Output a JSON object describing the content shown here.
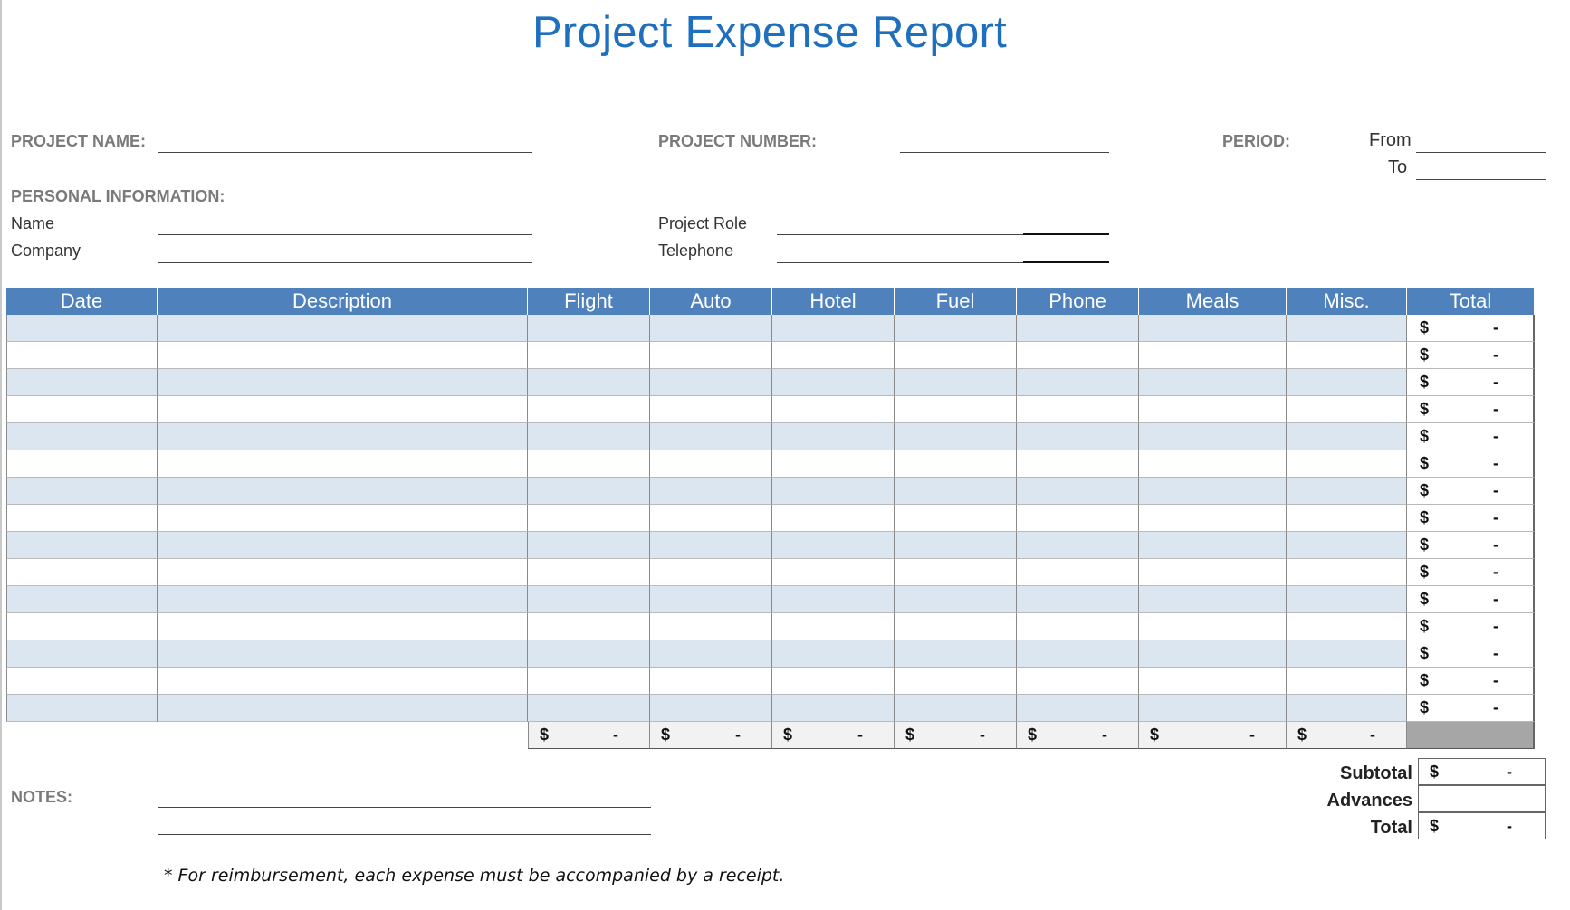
{
  "title": "Project Expense Report",
  "header_fields": {
    "project_name_label": "PROJECT NAME:",
    "project_number_label": "PROJECT NUMBER:",
    "period_label": "PERIOD:",
    "from_label": "From",
    "to_label": "To"
  },
  "personal": {
    "section_label": "PERSONAL INFORMATION:",
    "name_label": "Name",
    "company_label": "Company",
    "role_label": "Project Role",
    "telephone_label": "Telephone"
  },
  "table": {
    "columns": [
      "Date",
      "Description",
      "Flight",
      "Auto",
      "Hotel",
      "Fuel",
      "Phone",
      "Meals",
      "Misc.",
      "Total"
    ],
    "rows": [
      {
        "currency": "$",
        "total": "-"
      },
      {
        "currency": "$",
        "total": "-"
      },
      {
        "currency": "$",
        "total": "-"
      },
      {
        "currency": "$",
        "total": "-"
      },
      {
        "currency": "$",
        "total": "-"
      },
      {
        "currency": "$",
        "total": "-"
      },
      {
        "currency": "$",
        "total": "-"
      },
      {
        "currency": "$",
        "total": "-"
      },
      {
        "currency": "$",
        "total": "-"
      },
      {
        "currency": "$",
        "total": "-"
      },
      {
        "currency": "$",
        "total": "-"
      },
      {
        "currency": "$",
        "total": "-"
      },
      {
        "currency": "$",
        "total": "-"
      },
      {
        "currency": "$",
        "total": "-"
      },
      {
        "currency": "$",
        "total": "-"
      }
    ],
    "column_totals": [
      {
        "currency": "$",
        "value": "-"
      },
      {
        "currency": "$",
        "value": "-"
      },
      {
        "currency": "$",
        "value": "-"
      },
      {
        "currency": "$",
        "value": "-"
      },
      {
        "currency": "$",
        "value": "-"
      },
      {
        "currency": "$",
        "value": "-"
      },
      {
        "currency": "$",
        "value": "-"
      }
    ]
  },
  "summary": {
    "subtotal_label": "Subtotal",
    "subtotal_currency": "$",
    "subtotal_value": "-",
    "advances_label": "Advances",
    "total_label": "Total",
    "total_currency": "$",
    "total_value": "-"
  },
  "notes_label": "NOTES:",
  "footnote": "* For reimbursement, each expense must be accompanied by a receipt.",
  "colors": {
    "title": "#1f6fbf",
    "header_fill": "#4f81bd",
    "band_fill": "#dce6f1",
    "label_gray": "#7a7a7a"
  }
}
